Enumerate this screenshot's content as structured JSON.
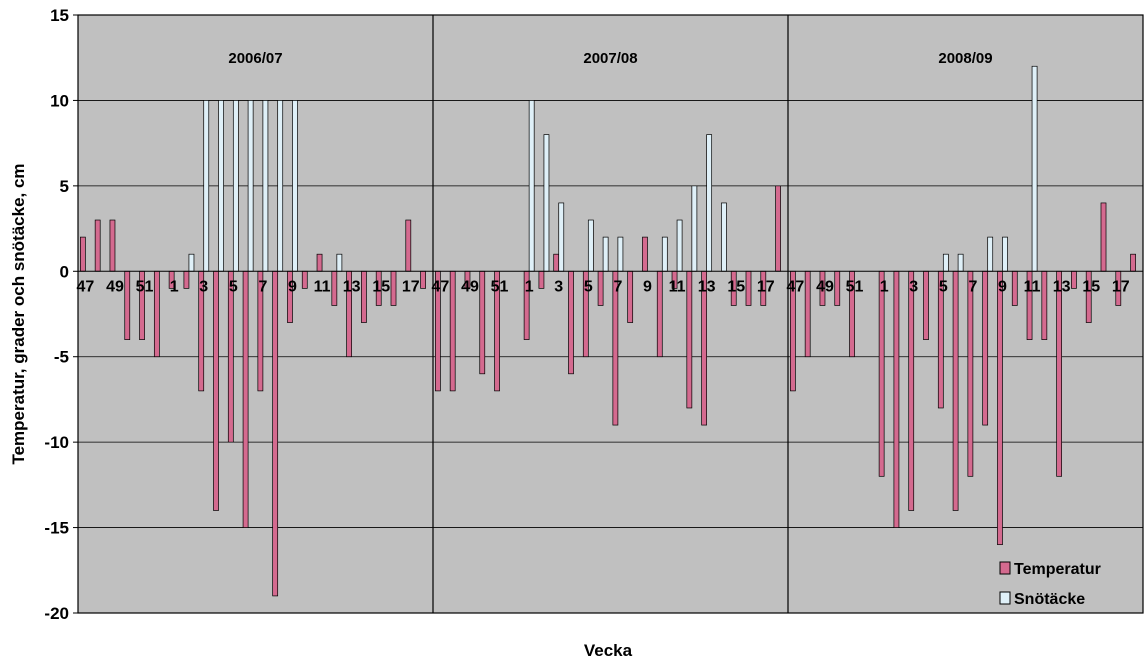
{
  "chart_data": {
    "type": "bar",
    "ylabel": "Temperatur, grader och snötäcke, cm",
    "xlabel": "Vecka",
    "ylim": [
      -20,
      15
    ],
    "yticks": [
      15,
      10,
      5,
      0,
      -5,
      -10,
      -15,
      -20
    ],
    "grid": "horizontal",
    "legend_position": "bottom-right",
    "legend": [
      "Temperatur",
      "Snötäcke"
    ],
    "colors": {
      "plot_background": "#c0c0c0",
      "temperature": "#d46a8f",
      "snow": "#dff0f8",
      "bar_outline": "#000000",
      "grid": "#000000"
    },
    "panels": [
      {
        "season": "2006/07",
        "weeks": [
          47,
          48,
          49,
          50,
          51,
          52,
          1,
          2,
          3,
          4,
          5,
          6,
          7,
          8,
          9,
          10,
          11,
          12,
          13,
          14,
          15,
          16,
          17,
          18
        ],
        "week_labels": [
          "47",
          "",
          "49",
          "",
          "51",
          "",
          "1",
          "",
          "3",
          "",
          "5",
          "",
          "7",
          "",
          "9",
          "",
          "11",
          "",
          "13",
          "",
          "15",
          "",
          "17",
          ""
        ],
        "series": [
          {
            "name": "Temperatur",
            "values": [
              2,
              3,
              3,
              -4,
              -4,
              -5,
              -1,
              -1,
              -7,
              -14,
              -10,
              -15,
              -7,
              -19,
              -3,
              -1,
              1,
              -2,
              -5,
              -3,
              -2,
              -2,
              3,
              -1
            ]
          },
          {
            "name": "Snötäcke",
            "values": [
              0,
              0,
              0,
              0,
              0,
              0,
              0,
              1,
              10,
              10,
              10,
              10,
              10,
              10,
              10,
              0,
              0,
              1,
              0,
              0,
              0,
              0,
              0,
              0
            ]
          }
        ]
      },
      {
        "season": "2007/08",
        "weeks": [
          47,
          48,
          49,
          50,
          51,
          52,
          1,
          2,
          3,
          4,
          5,
          6,
          7,
          8,
          9,
          10,
          11,
          12,
          13,
          14,
          15,
          16,
          17,
          18
        ],
        "week_labels": [
          "47",
          "",
          "49",
          "",
          "51",
          "",
          "1",
          "",
          "3",
          "",
          "5",
          "",
          "7",
          "",
          "9",
          "",
          "11",
          "",
          "13",
          "",
          "15",
          "",
          "17",
          ""
        ],
        "series": [
          {
            "name": "Temperatur",
            "values": [
              -7,
              -7,
              -1,
              -6,
              -7,
              0,
              -4,
              -1,
              1,
              -6,
              -5,
              -2,
              -9,
              -3,
              2,
              -5,
              -1,
              -8,
              -9,
              0,
              -2,
              -2,
              -2,
              5
            ]
          },
          {
            "name": "Snötäcke",
            "values": [
              0,
              0,
              0,
              0,
              0,
              0,
              10,
              8,
              4,
              0,
              3,
              2,
              2,
              0,
              0,
              2,
              3,
              5,
              8,
              4,
              0,
              0,
              0,
              0
            ]
          }
        ]
      },
      {
        "season": "2008/09",
        "weeks": [
          47,
          48,
          49,
          50,
          51,
          52,
          1,
          2,
          3,
          4,
          5,
          6,
          7,
          8,
          9,
          10,
          11,
          12,
          13,
          14,
          15,
          16,
          17,
          18
        ],
        "week_labels": [
          "47",
          "",
          "49",
          "",
          "51",
          "",
          "1",
          "",
          "3",
          "",
          "5",
          "",
          "7",
          "",
          "9",
          "",
          "11",
          "",
          "13",
          "",
          "15",
          "",
          "17",
          ""
        ],
        "series": [
          {
            "name": "Temperatur",
            "values": [
              -7,
              -5,
              -2,
              -2,
              -5,
              0,
              -12,
              -15,
              -14,
              -4,
              -8,
              -14,
              -12,
              -9,
              -16,
              -2,
              -4,
              -4,
              -12,
              -1,
              -3,
              4,
              -2,
              1
            ]
          },
          {
            "name": "Snötäcke",
            "values": [
              0,
              0,
              0,
              0,
              0,
              0,
              0,
              0,
              0,
              0,
              1,
              1,
              0,
              2,
              2,
              0,
              12,
              0,
              0,
              0,
              0,
              0,
              0,
              0
            ]
          }
        ]
      }
    ]
  }
}
